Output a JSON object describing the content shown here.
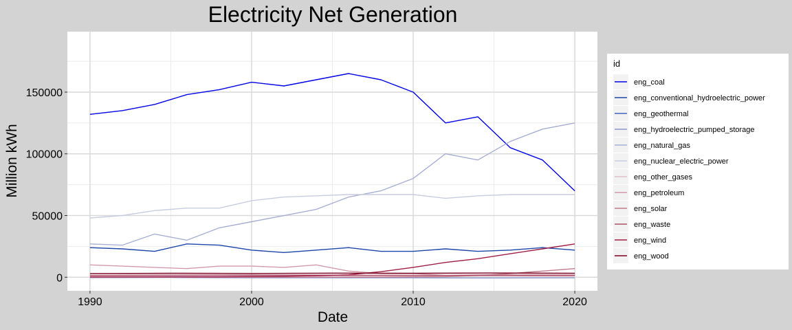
{
  "chart_data": {
    "type": "line",
    "title": "Electricity Net Generation",
    "xlabel": "Date",
    "ylabel": "Million kWh",
    "xlim": [
      "1990-01",
      "2020-01"
    ],
    "ylim": [
      0,
      190000
    ],
    "x_ticks": [
      {
        "value": 1990,
        "label": "1990"
      },
      {
        "value": 2000,
        "label": "2000"
      },
      {
        "value": 2010,
        "label": "2010"
      },
      {
        "value": 2020,
        "label": "2020"
      }
    ],
    "y_ticks": [
      {
        "value": 0,
        "label": "0"
      },
      {
        "value": 50000,
        "label": "50000"
      },
      {
        "value": 100000,
        "label": "100000"
      },
      {
        "value": 150000,
        "label": "150000"
      }
    ],
    "grid": true,
    "legend": {
      "title": "id",
      "position": "right"
    },
    "series": [
      {
        "name": "eng_coal",
        "color": "#0000e6",
        "x": [
          "1990",
          "1992",
          "1994",
          "1996",
          "1998",
          "2000",
          "2002",
          "2004",
          "2006",
          "2008",
          "2010",
          "2012",
          "2014",
          "2016",
          "2018",
          "2020"
        ],
        "y": [
          132000,
          135000,
          140000,
          148000,
          152000,
          158000,
          155000,
          160000,
          165000,
          160000,
          150000,
          125000,
          130000,
          105000,
          95000,
          70000
        ]
      },
      {
        "name": "eng_conventional_hydroelectric_power",
        "color": "#1a44a8",
        "x": [
          "1990",
          "1992",
          "1994",
          "1996",
          "1998",
          "2000",
          "2002",
          "2004",
          "2006",
          "2008",
          "2010",
          "2012",
          "2014",
          "2016",
          "2018",
          "2020"
        ],
        "y": [
          24000,
          23000,
          21000,
          27000,
          26000,
          22000,
          20000,
          22000,
          24000,
          21000,
          21000,
          23000,
          21000,
          22000,
          24000,
          22000
        ]
      },
      {
        "name": "eng_geothermal",
        "color": "#4060c0",
        "x": [
          "1990",
          "1995",
          "2000",
          "2005",
          "2010",
          "2015",
          "2020"
        ],
        "y": [
          1300,
          1200,
          1200,
          1200,
          1300,
          1400,
          1400
        ]
      },
      {
        "name": "eng_hydroelectric_pumped_storage",
        "color": "#8a96cc",
        "x": [
          "1990",
          "1995",
          "2000",
          "2005",
          "2010",
          "2015",
          "2020"
        ],
        "y": [
          -300,
          -200,
          -500,
          -500,
          -500,
          -600,
          -500
        ]
      },
      {
        "name": "eng_natural_gas",
        "color": "#a6aed3",
        "x": [
          "1990",
          "1992",
          "1994",
          "1996",
          "1998",
          "2000",
          "2002",
          "2004",
          "2006",
          "2008",
          "2010",
          "2012",
          "2014",
          "2016",
          "2018",
          "2020"
        ],
        "y": [
          27000,
          26000,
          35000,
          30000,
          40000,
          45000,
          50000,
          55000,
          65000,
          70000,
          80000,
          100000,
          95000,
          110000,
          120000,
          125000
        ]
      },
      {
        "name": "eng_nuclear_electric_power",
        "color": "#c8cce0",
        "x": [
          "1990",
          "1992",
          "1994",
          "1996",
          "1998",
          "2000",
          "2002",
          "2004",
          "2006",
          "2008",
          "2010",
          "2012",
          "2014",
          "2016",
          "2018",
          "2020"
        ],
        "y": [
          48000,
          50000,
          54000,
          56000,
          56000,
          62000,
          65000,
          66000,
          67000,
          67000,
          67000,
          64000,
          66000,
          67000,
          67000,
          67000
        ]
      },
      {
        "name": "eng_other_gases",
        "color": "#e0bec8",
        "x": [
          "1990",
          "1995",
          "2000",
          "2005",
          "2010",
          "2015",
          "2020"
        ],
        "y": [
          1100,
          1200,
          1100,
          1100,
          900,
          1100,
          1000
        ]
      },
      {
        "name": "eng_petroleum",
        "color": "#d29aaa",
        "x": [
          "1990",
          "1992",
          "1994",
          "1996",
          "1998",
          "2000",
          "2002",
          "2004",
          "2006",
          "2008",
          "2010",
          "2012",
          "2014",
          "2016",
          "2018",
          "2020"
        ],
        "y": [
          10000,
          9000,
          8000,
          7000,
          9000,
          9000,
          8000,
          10000,
          5000,
          3000,
          3000,
          1500,
          2000,
          2000,
          2000,
          1800
        ]
      },
      {
        "name": "eng_solar",
        "color": "#c07a8a",
        "x": [
          "1990",
          "2000",
          "2008",
          "2012",
          "2014",
          "2016",
          "2018",
          "2020"
        ],
        "y": [
          50,
          50,
          100,
          500,
          1500,
          3000,
          5000,
          7000
        ]
      },
      {
        "name": "eng_waste",
        "color": "#b0506a",
        "x": [
          "1990",
          "1995",
          "2000",
          "2005",
          "2010",
          "2015",
          "2020"
        ],
        "y": [
          1500,
          1700,
          1800,
          1700,
          1500,
          1500,
          1400
        ]
      },
      {
        "name": "eng_wind",
        "color": "#a01c44",
        "x": [
          "1990",
          "1998",
          "2002",
          "2004",
          "2006",
          "2008",
          "2010",
          "2012",
          "2014",
          "2016",
          "2018",
          "2020"
        ],
        "y": [
          250,
          300,
          800,
          1200,
          2000,
          4500,
          8000,
          12000,
          15000,
          19000,
          23000,
          27000
        ]
      },
      {
        "name": "eng_wood",
        "color": "#7a0020",
        "x": [
          "1990",
          "1995",
          "2000",
          "2005",
          "2010",
          "2015",
          "2020"
        ],
        "y": [
          3000,
          3200,
          3100,
          3300,
          3200,
          3400,
          3200
        ]
      }
    ]
  }
}
